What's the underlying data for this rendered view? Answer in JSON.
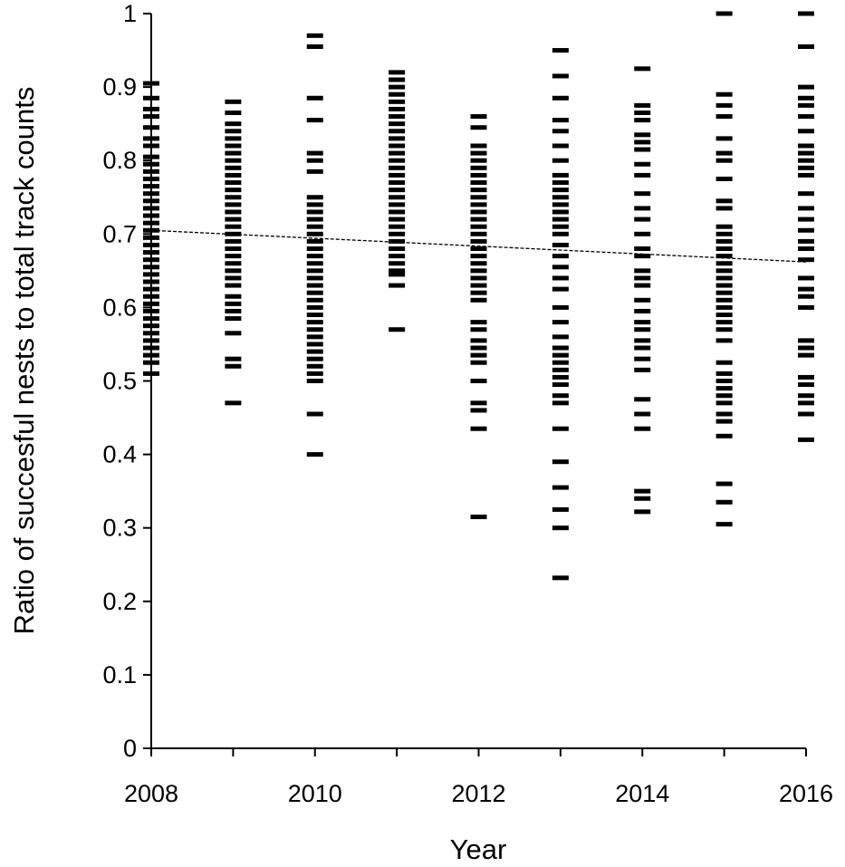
{
  "chart_data": {
    "type": "scatter",
    "title": "",
    "xlabel": "Year",
    "ylabel": "Ratio of succesful nests to total track counts",
    "xlim": [
      2008,
      2016
    ],
    "ylim": [
      0,
      1
    ],
    "x_ticks": [
      "2008",
      "2010",
      "2012",
      "2014",
      "2016"
    ],
    "y_ticks": [
      "0",
      "0.1",
      "0.2",
      "0.3",
      "0.4",
      "0.5",
      "0.6",
      "0.7",
      "0.8",
      "0.9",
      "1"
    ],
    "grid": false,
    "legend": "none",
    "marker": "horizontal-dash",
    "marker_color": "#000000",
    "trendline": {
      "style": "dashed",
      "x": [
        2008,
        2016
      ],
      "y": [
        0.705,
        0.662
      ]
    },
    "points": [
      {
        "x": 2008,
        "y": [
          0.905,
          0.885,
          0.87,
          0.86,
          0.845,
          0.83,
          0.82,
          0.805,
          0.795,
          0.785,
          0.775,
          0.765,
          0.755,
          0.745,
          0.735,
          0.725,
          0.715,
          0.705,
          0.695,
          0.685,
          0.675,
          0.665,
          0.655,
          0.645,
          0.635,
          0.625,
          0.615,
          0.605,
          0.595,
          0.585,
          0.575,
          0.565,
          0.555,
          0.545,
          0.535,
          0.525,
          0.51
        ]
      },
      {
        "x": 2009,
        "y": [
          0.88,
          0.865,
          0.85,
          0.84,
          0.83,
          0.82,
          0.81,
          0.8,
          0.79,
          0.78,
          0.77,
          0.76,
          0.75,
          0.74,
          0.73,
          0.72,
          0.71,
          0.7,
          0.69,
          0.68,
          0.67,
          0.66,
          0.65,
          0.64,
          0.63,
          0.615,
          0.605,
          0.595,
          0.585,
          0.565,
          0.53,
          0.52,
          0.47
        ]
      },
      {
        "x": 2010,
        "y": [
          0.97,
          0.955,
          0.885,
          0.855,
          0.81,
          0.8,
          0.785,
          0.75,
          0.74,
          0.73,
          0.72,
          0.71,
          0.7,
          0.69,
          0.68,
          0.67,
          0.66,
          0.65,
          0.64,
          0.63,
          0.62,
          0.61,
          0.6,
          0.59,
          0.58,
          0.57,
          0.56,
          0.55,
          0.54,
          0.53,
          0.52,
          0.51,
          0.5,
          0.455,
          0.4
        ]
      },
      {
        "x": 2011,
        "y": [
          0.92,
          0.91,
          0.9,
          0.89,
          0.88,
          0.87,
          0.86,
          0.85,
          0.84,
          0.83,
          0.82,
          0.81,
          0.8,
          0.79,
          0.78,
          0.77,
          0.76,
          0.75,
          0.74,
          0.73,
          0.72,
          0.71,
          0.7,
          0.69,
          0.68,
          0.67,
          0.66,
          0.65,
          0.645,
          0.63,
          0.57
        ]
      },
      {
        "x": 2012,
        "y": [
          0.86,
          0.845,
          0.82,
          0.81,
          0.8,
          0.79,
          0.78,
          0.77,
          0.76,
          0.75,
          0.74,
          0.73,
          0.72,
          0.71,
          0.7,
          0.69,
          0.68,
          0.67,
          0.66,
          0.65,
          0.64,
          0.63,
          0.62,
          0.61,
          0.58,
          0.57,
          0.555,
          0.545,
          0.535,
          0.525,
          0.5,
          0.47,
          0.46,
          0.435,
          0.315
        ]
      },
      {
        "x": 2013,
        "y": [
          0.95,
          0.915,
          0.885,
          0.855,
          0.84,
          0.82,
          0.8,
          0.78,
          0.77,
          0.76,
          0.75,
          0.74,
          0.73,
          0.72,
          0.71,
          0.7,
          0.685,
          0.67,
          0.655,
          0.64,
          0.625,
          0.6,
          0.58,
          0.56,
          0.545,
          0.535,
          0.525,
          0.515,
          0.505,
          0.495,
          0.48,
          0.47,
          0.435,
          0.39,
          0.355,
          0.325,
          0.3,
          0.232
        ]
      },
      {
        "x": 2014,
        "y": [
          0.925,
          0.875,
          0.865,
          0.855,
          0.835,
          0.825,
          0.815,
          0.795,
          0.78,
          0.755,
          0.735,
          0.72,
          0.7,
          0.68,
          0.67,
          0.65,
          0.64,
          0.63,
          0.61,
          0.595,
          0.58,
          0.57,
          0.555,
          0.545,
          0.53,
          0.515,
          0.475,
          0.455,
          0.435,
          0.35,
          0.34,
          0.322
        ]
      },
      {
        "x": 2015,
        "y": [
          1.0,
          0.89,
          0.875,
          0.86,
          0.83,
          0.81,
          0.8,
          0.775,
          0.745,
          0.735,
          0.71,
          0.7,
          0.69,
          0.68,
          0.67,
          0.66,
          0.65,
          0.64,
          0.63,
          0.62,
          0.61,
          0.6,
          0.59,
          0.58,
          0.57,
          0.555,
          0.525,
          0.51,
          0.5,
          0.49,
          0.48,
          0.47,
          0.455,
          0.445,
          0.425,
          0.36,
          0.335,
          0.305
        ]
      },
      {
        "x": 2016,
        "y": [
          1.0,
          0.955,
          0.9,
          0.885,
          0.875,
          0.86,
          0.84,
          0.82,
          0.81,
          0.8,
          0.79,
          0.78,
          0.755,
          0.735,
          0.72,
          0.705,
          0.69,
          0.68,
          0.665,
          0.64,
          0.625,
          0.615,
          0.6,
          0.555,
          0.545,
          0.535,
          0.505,
          0.495,
          0.48,
          0.47,
          0.455,
          0.42
        ]
      }
    ]
  }
}
